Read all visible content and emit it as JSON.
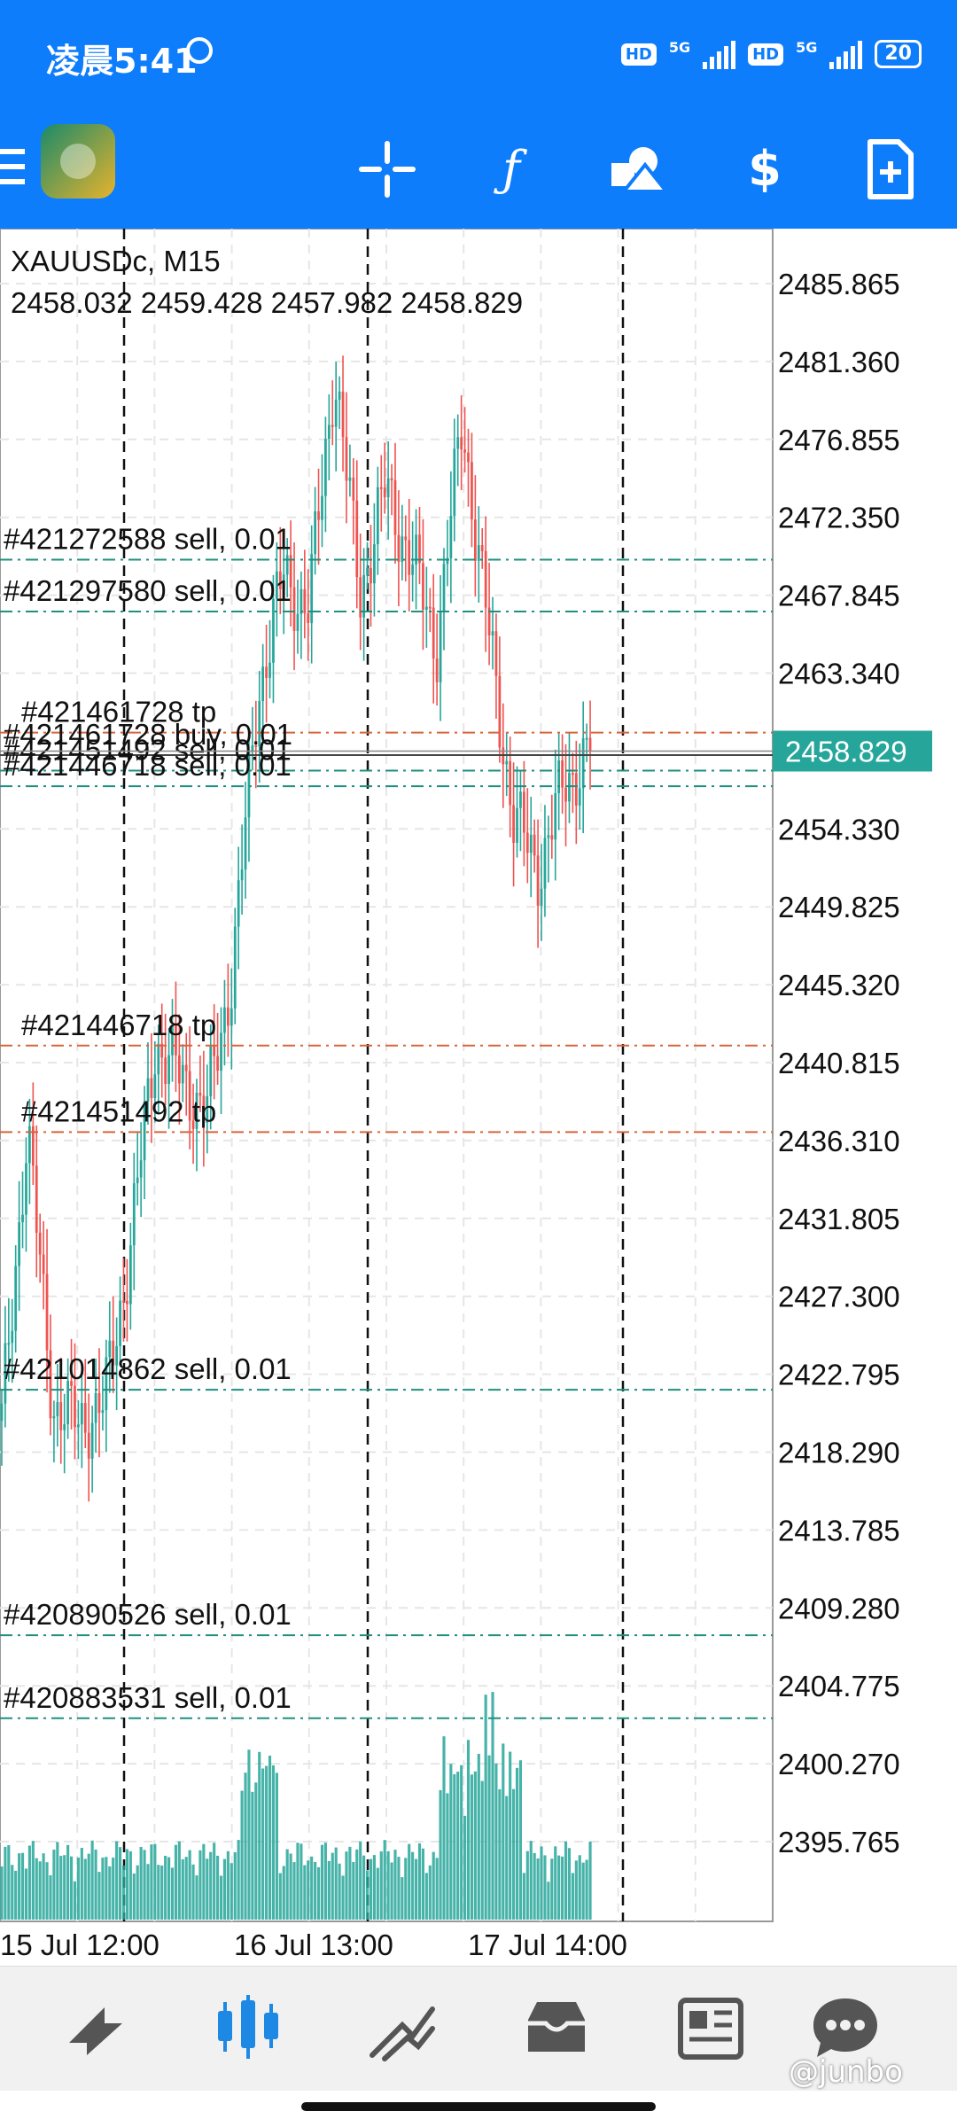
{
  "status_bar": {
    "time": "凌晨5:41",
    "hd1": "HD",
    "hd2": "HD",
    "net1": "5G",
    "net2": "5G",
    "battery": "20"
  },
  "toolbar": {
    "icons": [
      "menu-icon",
      "metatrader-logo-icon",
      "crosshair-icon",
      "indicators-f-icon",
      "objects-icon",
      "trade-dollar-icon",
      "new-order-icon"
    ]
  },
  "chart_data": {
    "type": "candlestick",
    "symbol_header": "XAUUSDc, M15",
    "ohlc_header": "2458.032 2459.428 2457.982 2458.829",
    "current_price": "2458.829",
    "y_tick_labels": [
      "2485.865",
      "2481.360",
      "2476.855",
      "2472.350",
      "2467.845",
      "2463.340",
      "2454.330",
      "2449.825",
      "2445.320",
      "2440.815",
      "2436.310",
      "2431.805",
      "2427.300",
      "2422.795",
      "2418.290",
      "2413.785",
      "2409.280",
      "2404.775",
      "2400.270",
      "2395.765"
    ],
    "x_tick_labels": [
      "15 Jul 12:00",
      "16 Jul 13:00",
      "17 Jul 14:00"
    ],
    "ylim": [
      2395.765,
      2485.865
    ],
    "order_lines": [
      {
        "label": "#421272588 sell, 0.01",
        "price": 2469.9,
        "kind": "sell"
      },
      {
        "label": "#421297580 sell, 0.01",
        "price": 2466.9,
        "kind": "sell"
      },
      {
        "label": "#421461728 tp",
        "price": 2459.9,
        "kind": "tp"
      },
      {
        "label": "#421461728 buy, 0.01",
        "price": 2458.6,
        "kind": "buy"
      },
      {
        "label": "#421451492 sell, 0.01",
        "price": 2457.7,
        "kind": "sell"
      },
      {
        "label": "#421446718 sell, 0.01",
        "price": 2456.8,
        "kind": "sell"
      },
      {
        "label": "#421446718 tp",
        "price": 2441.8,
        "kind": "tp"
      },
      {
        "label": "#421451492 tp",
        "price": 2436.8,
        "kind": "tp"
      },
      {
        "label": "#421014862 sell, 0.01",
        "price": 2421.9,
        "kind": "sell"
      },
      {
        "label": "#420890526 sell, 0.01",
        "price": 2407.7,
        "kind": "sell"
      },
      {
        "label": "#420883531 sell, 0.01",
        "price": 2402.9,
        "kind": "sell"
      }
    ],
    "key_closes": [
      2420,
      2437,
      2421,
      2420,
      2421,
      2430,
      2442,
      2440,
      2438,
      2446,
      2462,
      2469,
      2467,
      2481,
      2468,
      2474,
      2470,
      2465,
      2478,
      2466,
      2455,
      2452,
      2457,
      2458.829
    ],
    "grid": true,
    "colors": {
      "up": "#26a69a",
      "down": "#ef5350",
      "sell_line": "#1e8f80",
      "tp_line": "#d9643a",
      "buy_line": "#444444",
      "price_tag": "#26a69a"
    }
  },
  "bottom_nav": {
    "items": [
      "quotes-icon",
      "chart-icon",
      "trade-icon",
      "history-icon",
      "news-icon",
      "messages-icon"
    ]
  },
  "watermark": "@junbo"
}
